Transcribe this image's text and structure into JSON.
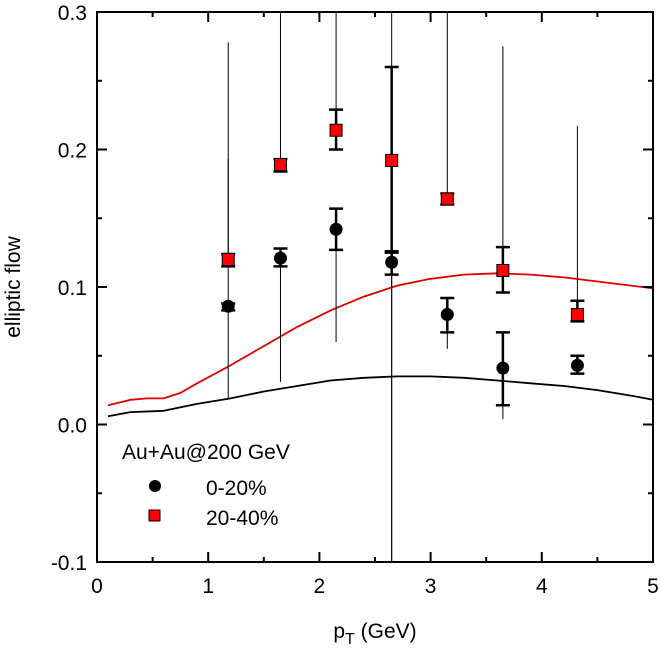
{
  "chart_data": {
    "type": "scatter",
    "title": "",
    "xlabel_main": "p",
    "xlabel_sub": "T",
    "xlabel_unit": " (GeV)",
    "ylabel": "elliptic flow",
    "xlim": [
      0,
      5
    ],
    "ylim": [
      -0.1,
      0.3
    ],
    "xticks": [
      0,
      1,
      2,
      3,
      4,
      5
    ],
    "xtick_labels": [
      "0",
      "1",
      "2",
      "3",
      "4",
      "5"
    ],
    "yticks": [
      -0.1,
      0.0,
      0.1,
      0.2,
      0.3
    ],
    "ytick_labels": [
      "-0.1",
      "0.0",
      "0.1",
      "0.2",
      "0.3"
    ],
    "legend_title": "Au+Au@200 GeV",
    "legend_position": "bottom-left",
    "series": [
      {
        "name": "0-20%",
        "marker": "circle",
        "color": "#000000",
        "x": [
          1.18,
          1.65,
          2.15,
          2.65,
          3.15,
          3.65,
          4.32
        ],
        "y": [
          0.086,
          0.121,
          0.142,
          0.118,
          0.08,
          0.041,
          0.043
        ],
        "stat_err_low": [
          0.083,
          0.115,
          0.127,
          0.109,
          0.067,
          0.014,
          0.037
        ],
        "stat_err_high": [
          0.088,
          0.128,
          0.157,
          0.126,
          0.092,
          0.067,
          0.05
        ],
        "sys_err_low": [
          0.019,
          0.031,
          0.06,
          -0.1,
          0.055,
          0.004,
          0.037
        ],
        "sys_err_high": [
          0.193,
          0.128,
          0.157,
          0.26,
          0.092,
          0.067,
          0.05
        ]
      },
      {
        "name": "20-40%",
        "marker": "square",
        "color": "#ff0000",
        "x": [
          1.18,
          1.65,
          2.15,
          2.65,
          3.15,
          3.65,
          4.32
        ],
        "y": [
          0.12,
          0.189,
          0.214,
          0.192,
          0.164,
          0.112,
          0.08
        ],
        "stat_err_low": [
          0.115,
          0.184,
          0.2,
          0.125,
          0.16,
          0.096,
          0.075
        ],
        "stat_err_high": [
          0.124,
          0.193,
          0.229,
          0.26,
          0.168,
          0.129,
          0.09
        ],
        "sys_err_low": [
          0.115,
          0.184,
          0.2,
          -0.1,
          0.16,
          0.096,
          0.075
        ],
        "sys_err_high": [
          0.278,
          0.3,
          0.3,
          0.3,
          0.3,
          0.275,
          0.217
        ]
      }
    ],
    "curves": [
      {
        "name": "0-20% model",
        "color": "#000000",
        "x": [
          0.1,
          0.3,
          0.6,
          0.9,
          1.2,
          1.5,
          1.8,
          2.1,
          2.4,
          2.7,
          3.0,
          3.3,
          3.6,
          3.9,
          4.2,
          4.5,
          4.8,
          5.0
        ],
        "y": [
          0.006,
          0.009,
          0.01,
          0.015,
          0.019,
          0.024,
          0.028,
          0.032,
          0.034,
          0.035,
          0.035,
          0.034,
          0.032,
          0.03,
          0.028,
          0.025,
          0.021,
          0.018
        ]
      },
      {
        "name": "20-40% model",
        "color": "#dd0000",
        "x": [
          0.1,
          0.3,
          0.45,
          0.6,
          0.75,
          0.9,
          1.2,
          1.5,
          1.8,
          2.1,
          2.4,
          2.7,
          3.0,
          3.3,
          3.6,
          3.9,
          4.2,
          4.5,
          4.8,
          5.0
        ],
        "y": [
          0.014,
          0.018,
          0.019,
          0.019,
          0.023,
          0.03,
          0.043,
          0.057,
          0.071,
          0.083,
          0.093,
          0.101,
          0.106,
          0.109,
          0.11,
          0.109,
          0.107,
          0.104,
          0.101,
          0.099
        ]
      }
    ]
  }
}
